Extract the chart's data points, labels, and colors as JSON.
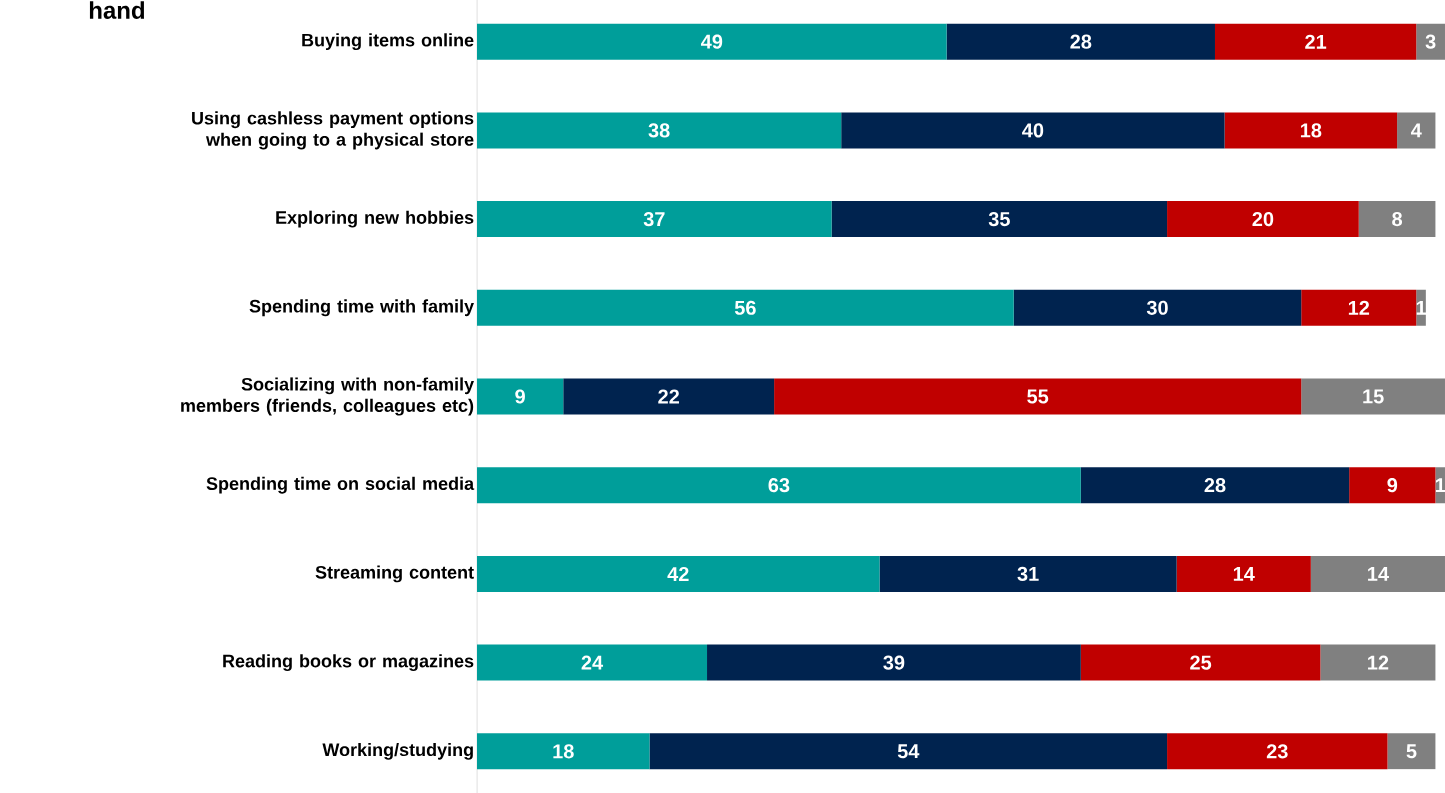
{
  "chart_data": {
    "type": "bar",
    "orientation": "horizontal",
    "stacked": true,
    "data_labels": true,
    "title": "hand",
    "categories": [
      "Buying items online",
      "Using cashless payment options when going to a physical store",
      "Exploring new hobbies",
      "Spending time with family",
      "Socializing with non-family members (friends, colleagues etc)",
      "Spending time on social media",
      "Streaming content",
      "Reading books or magazines",
      "Working/studying"
    ],
    "series": [
      {
        "color": "#009e9a",
        "values": [
          49,
          38,
          37,
          56,
          9,
          63,
          42,
          24,
          18
        ]
      },
      {
        "color": "#00234f",
        "values": [
          28,
          40,
          35,
          30,
          22,
          28,
          31,
          39,
          54
        ]
      },
      {
        "color": "#c00000",
        "values": [
          21,
          18,
          20,
          12,
          55,
          9,
          14,
          25,
          23
        ]
      },
      {
        "color": "#808080",
        "values": [
          3,
          4,
          8,
          1,
          15,
          1,
          14,
          12,
          5
        ]
      }
    ]
  }
}
